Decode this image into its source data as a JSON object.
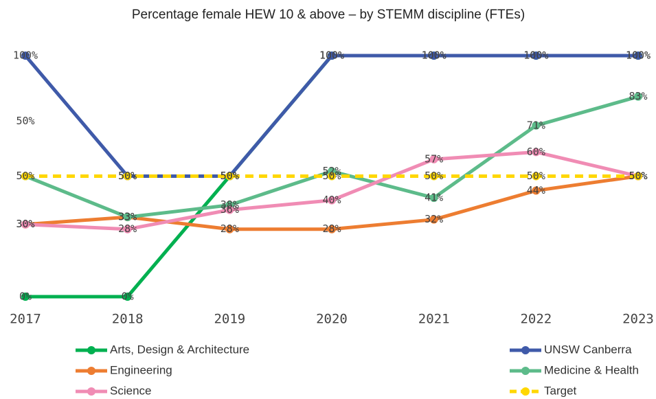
{
  "chart_data": {
    "type": "line",
    "title": "Percentage female HEW 10 & above – by STEMM discipline (FTEs)",
    "categories": [
      "2017",
      "2018",
      "2019",
      "2020",
      "2021",
      "2022",
      "2023"
    ],
    "ylim": [
      0,
      100
    ],
    "series": [
      {
        "name": "Arts, Design & Architecture",
        "color": "#00b050",
        "values": [
          0,
          0,
          50,
          100,
          100,
          100,
          100
        ],
        "value_labels": [
          "0%",
          "0%",
          "50%",
          "100%",
          "100%",
          "100%",
          "100%"
        ]
      },
      {
        "name": "UNSW Canberra",
        "color": "#3f5aa9",
        "values": [
          100,
          50,
          50,
          100,
          100,
          100,
          100
        ],
        "value_labels": [
          "100%",
          "50%",
          "50%",
          "100%",
          "100%",
          "100%",
          "100%"
        ]
      },
      {
        "name": "Engineering",
        "color": "#ed7d31",
        "values": [
          30,
          33,
          28,
          28,
          32,
          44,
          50
        ],
        "value_labels": [
          "30%",
          "33%",
          "28%",
          "28%",
          "32%",
          "44%",
          "50%"
        ]
      },
      {
        "name": "Medicine & Health",
        "color": "#5dbb8a",
        "values": [
          50,
          33,
          38,
          52,
          41,
          71,
          83
        ],
        "value_labels": [
          "50%",
          "33%",
          "38%",
          "52%",
          "41%",
          "71%",
          "83%"
        ]
      },
      {
        "name": "Science",
        "color": "#f08cb4",
        "values": [
          30,
          28,
          36,
          40,
          57,
          60,
          50
        ],
        "value_labels": [
          "30%",
          "28%",
          "36%",
          "40%",
          "57%",
          "60%",
          "50%"
        ]
      },
      {
        "name": "Target",
        "color": "#ffd700",
        "dashed": true,
        "values": [
          50,
          50,
          50,
          50,
          50,
          50,
          50
        ],
        "value_labels": [
          "50%",
          "50%",
          "50%",
          "50%",
          "50%",
          "50%",
          "50%"
        ]
      }
    ]
  }
}
